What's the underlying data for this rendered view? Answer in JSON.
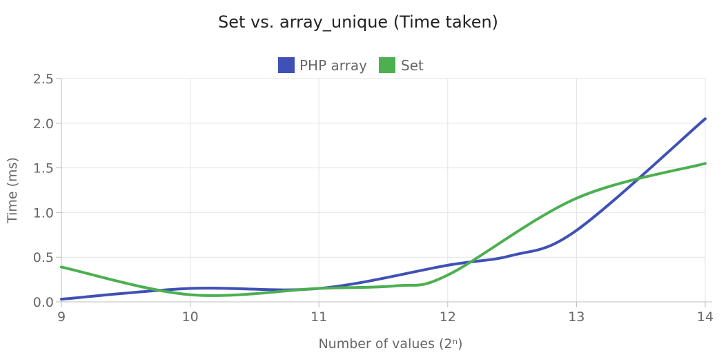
{
  "chart_data": {
    "type": "line",
    "title": "Set vs. array_unique (Time taken)",
    "xlabel": "Number of values (2ⁿ)",
    "ylabel": "Time (ms)",
    "x": [
      9,
      10,
      11,
      12,
      13,
      14
    ],
    "xlim": [
      9,
      14
    ],
    "ylim": [
      0,
      2.5
    ],
    "x_ticks": [
      "9",
      "10",
      "11",
      "12",
      "13",
      "14"
    ],
    "y_ticks": [
      "0.0",
      "0.5",
      "1.0",
      "1.5",
      "2.0",
      "2.5"
    ],
    "grid": true,
    "legend_position": "top",
    "series": [
      {
        "name": "PHP array",
        "color": "#3f51b5",
        "points": [
          [
            9,
            0.03
          ],
          [
            10,
            0.15
          ],
          [
            11,
            0.15
          ],
          [
            12,
            0.41
          ],
          [
            12.5,
            0.52
          ],
          [
            13,
            0.8
          ],
          [
            14,
            2.05
          ]
        ]
      },
      {
        "name": "Set",
        "color": "#4caf50",
        "points": [
          [
            9,
            0.39
          ],
          [
            10,
            0.08
          ],
          [
            11,
            0.15
          ],
          [
            11.6,
            0.18
          ],
          [
            12,
            0.3
          ],
          [
            13,
            1.16
          ],
          [
            14,
            1.55
          ]
        ]
      }
    ]
  }
}
